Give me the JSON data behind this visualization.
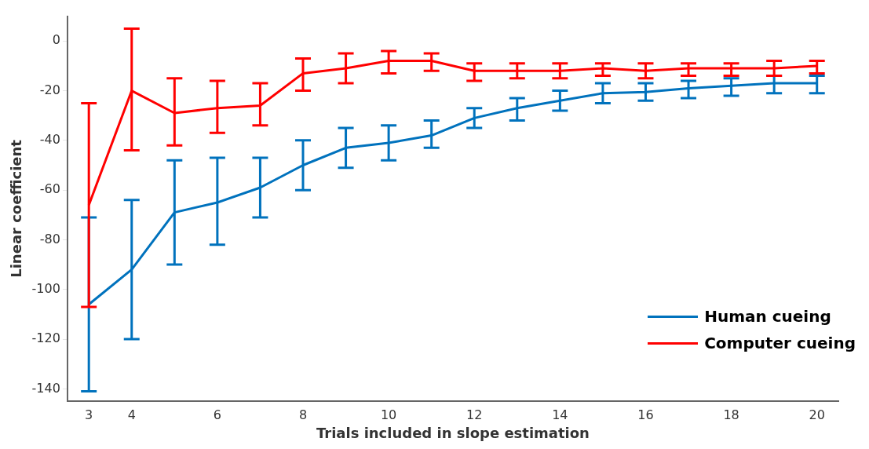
{
  "chart_data": {
    "type": "line",
    "xlabel": "Trials included in slope estimation",
    "ylabel": "Linear coefficient",
    "x": [
      3,
      4,
      5,
      6,
      7,
      8,
      9,
      10,
      11,
      12,
      13,
      14,
      15,
      16,
      17,
      18,
      19,
      20
    ],
    "series": [
      {
        "name": "Human cueing",
        "color": "#0072bd",
        "values": [
          -106,
          -92,
          -69,
          -65,
          -59,
          -50,
          -43,
          -41,
          -38,
          -31,
          -27,
          -24,
          -21,
          -20.5,
          -19,
          -18,
          -17,
          -17
        ],
        "errors": [
          [
            -141,
            -71
          ],
          [
            -120,
            -64
          ],
          [
            -90,
            -48
          ],
          [
            -82,
            -47
          ],
          [
            -71,
            -47
          ],
          [
            -60,
            -40
          ],
          [
            -51,
            -35
          ],
          [
            -48,
            -34
          ],
          [
            -43,
            -32
          ],
          [
            -35,
            -27
          ],
          [
            -32,
            -23
          ],
          [
            -28,
            -20
          ],
          [
            -25,
            -17
          ],
          [
            -24,
            -17
          ],
          [
            -23,
            -16
          ],
          [
            -22,
            -15
          ],
          [
            -21,
            -14
          ],
          [
            -21,
            -14
          ]
        ]
      },
      {
        "name": "Computer cueing",
        "color": "#ff0000",
        "values": [
          -66,
          -20,
          -29,
          -27,
          -26,
          -13,
          -11,
          -8,
          -8,
          -12,
          -12,
          -12,
          -11,
          -12,
          -11,
          -11,
          -11,
          -10
        ],
        "errors": [
          [
            -107,
            -25
          ],
          [
            -44,
            5
          ],
          [
            -42,
            -15
          ],
          [
            -37,
            -16
          ],
          [
            -34,
            -17
          ],
          [
            -20,
            -7
          ],
          [
            -17,
            -5
          ],
          [
            -13,
            -4
          ],
          [
            -12,
            -5
          ],
          [
            -16,
            -9
          ],
          [
            -15,
            -9
          ],
          [
            -15,
            -9
          ],
          [
            -14,
            -9
          ],
          [
            -15,
            -9
          ],
          [
            -14,
            -9
          ],
          [
            -14,
            -9
          ],
          [
            -14,
            -8
          ],
          [
            -13,
            -8
          ]
        ]
      }
    ],
    "xlim": [
      2.5,
      20.5
    ],
    "xticks": [
      3,
      4,
      6,
      8,
      10,
      12,
      14,
      16,
      18,
      20
    ],
    "ylim": [
      -145,
      10
    ],
    "yticks": [
      -140,
      -120,
      -100,
      -80,
      -60,
      -40,
      -20,
      0
    ],
    "grid": false,
    "legend": "bottom right",
    "marker": "none",
    "line_style": "solid"
  }
}
